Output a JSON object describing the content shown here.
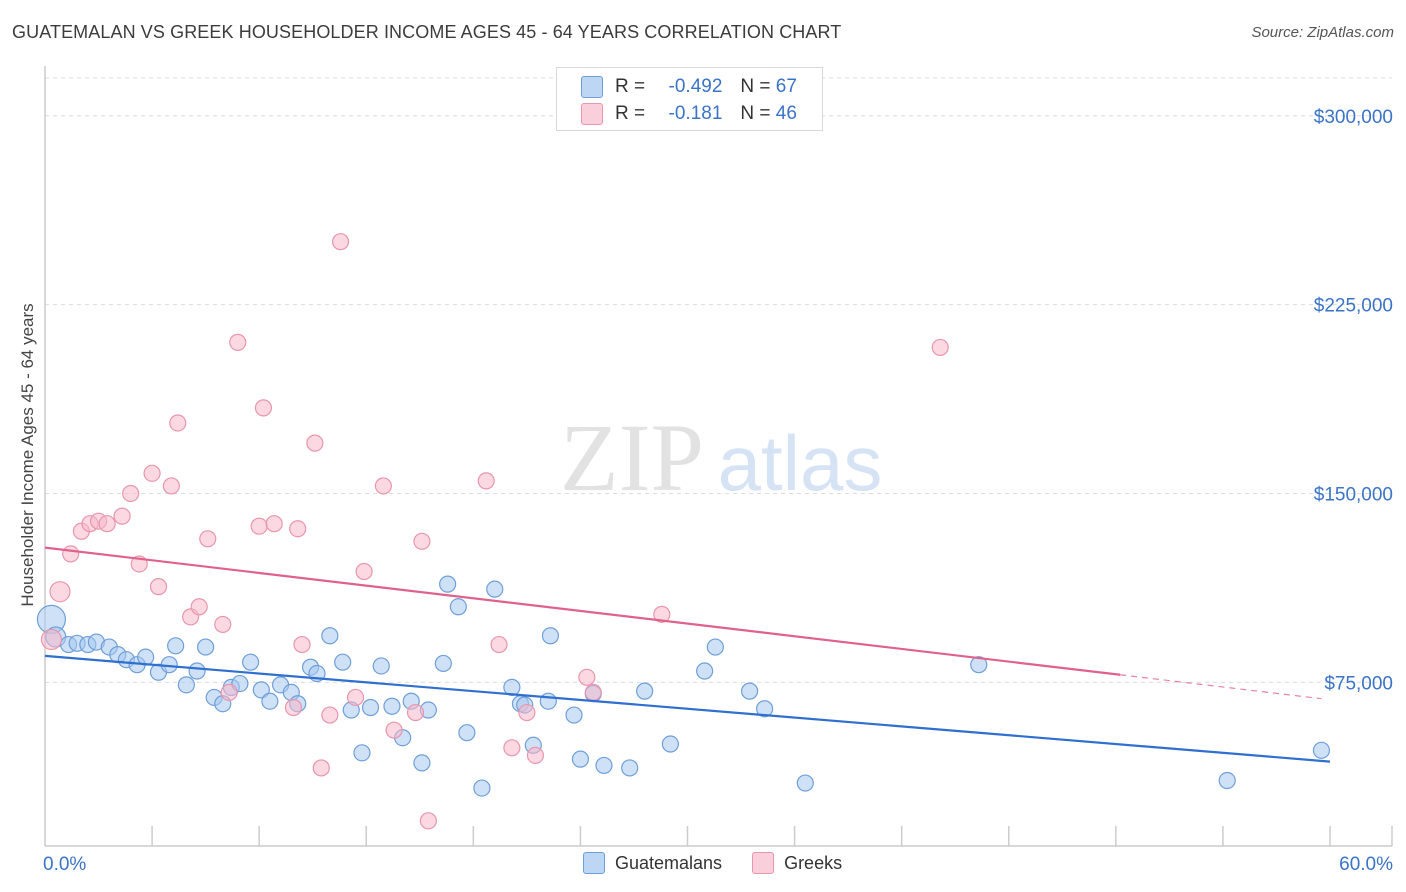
{
  "header": {
    "title": "GUATEMALAN VS GREEK HOUSEHOLDER INCOME AGES 45 - 64 YEARS CORRELATION CHART",
    "source": "Source: ZipAtlas.com"
  },
  "watermark": {
    "zip": "ZIP",
    "atlas": "atlas"
  },
  "legend": {
    "rows": [
      {
        "r_label": "R =",
        "r_value": "-0.492",
        "n_label": "N =",
        "n_value": "67",
        "color": "#a8c8f0"
      },
      {
        "r_label": "R =",
        "r_value": "-0.181",
        "n_label": "N =",
        "n_value": "46",
        "color": "#f7b8cb"
      }
    ]
  },
  "bottom_legend": {
    "items": [
      "Guatemalans",
      "Greeks"
    ]
  },
  "chart_data": {
    "type": "scatter",
    "title": "GUATEMALAN VS GREEK HOUSEHOLDER INCOME AGES 45 - 64 YEARS CORRELATION CHART",
    "xlabel": "",
    "ylabel": "Householder Income Ages 45 - 64 years",
    "xlim": [
      0,
      60
    ],
    "ylim": [
      10000,
      315000
    ],
    "x_tick_labels": [
      "0.0%",
      "60.0%"
    ],
    "y_ticks": [
      75000,
      150000,
      225000,
      300000
    ],
    "y_tick_labels": [
      "$75,000",
      "$150,000",
      "$225,000",
      "$300,000"
    ],
    "grid": true,
    "legend_position": "top-center",
    "series": [
      {
        "name": "Guatemalans",
        "color": "#a8c8f0",
        "stroke": "#6f9fd8",
        "trend": {
          "x": [
            0,
            60
          ],
          "y": [
            85500,
            43500
          ],
          "color": "#2f6fcf"
        },
        "points": [
          [
            0.3,
            100000,
            14
          ],
          [
            0.5,
            93000,
            10
          ],
          [
            1.1,
            90000,
            8
          ],
          [
            1.5,
            90500,
            8
          ],
          [
            2.0,
            90000,
            8
          ],
          [
            2.4,
            91000,
            8
          ],
          [
            3.0,
            89000,
            8
          ],
          [
            3.4,
            86000,
            8
          ],
          [
            3.8,
            84000,
            8
          ],
          [
            4.3,
            82000,
            8
          ],
          [
            4.7,
            85000,
            8
          ],
          [
            5.3,
            79000,
            8
          ],
          [
            5.8,
            82000,
            8
          ],
          [
            6.1,
            89500,
            8
          ],
          [
            6.6,
            74000,
            8
          ],
          [
            7.1,
            79500,
            8
          ],
          [
            7.5,
            89000,
            8
          ],
          [
            7.9,
            69000,
            8
          ],
          [
            8.3,
            66500,
            8
          ],
          [
            8.7,
            73000,
            8
          ],
          [
            9.1,
            74500,
            8
          ],
          [
            9.6,
            83000,
            8
          ],
          [
            10.1,
            72000,
            8
          ],
          [
            10.5,
            67500,
            8
          ],
          [
            11.0,
            74000,
            8
          ],
          [
            11.5,
            71000,
            8
          ],
          [
            11.8,
            66500,
            8
          ],
          [
            12.4,
            81000,
            8
          ],
          [
            12.7,
            78500,
            8
          ],
          [
            13.3,
            93500,
            8
          ],
          [
            13.9,
            83000,
            8
          ],
          [
            14.3,
            64000,
            8
          ],
          [
            14.8,
            47000,
            8
          ],
          [
            15.2,
            65000,
            8
          ],
          [
            15.7,
            81500,
            8
          ],
          [
            16.2,
            65500,
            8
          ],
          [
            16.7,
            53000,
            8
          ],
          [
            17.1,
            67500,
            8
          ],
          [
            17.6,
            43000,
            8
          ],
          [
            17.9,
            64000,
            8
          ],
          [
            18.6,
            82500,
            8
          ],
          [
            18.8,
            114000,
            8
          ],
          [
            19.3,
            105000,
            8
          ],
          [
            19.7,
            55000,
            8
          ],
          [
            20.4,
            33000,
            8
          ],
          [
            21.0,
            112000,
            8
          ],
          [
            21.8,
            73000,
            8
          ],
          [
            22.2,
            66500,
            8
          ],
          [
            22.4,
            66000,
            8
          ],
          [
            22.8,
            50000,
            8
          ],
          [
            23.5,
            67500,
            8
          ],
          [
            23.6,
            93500,
            8
          ],
          [
            24.7,
            62000,
            8
          ],
          [
            25.0,
            44500,
            8
          ],
          [
            25.6,
            70500,
            8
          ],
          [
            26.1,
            42000,
            8
          ],
          [
            27.3,
            41000,
            8
          ],
          [
            28.0,
            71500,
            8
          ],
          [
            29.2,
            50500,
            8
          ],
          [
            30.8,
            79500,
            8
          ],
          [
            31.3,
            89000,
            8
          ],
          [
            32.9,
            71500,
            8
          ],
          [
            33.6,
            64500,
            8
          ],
          [
            35.5,
            35000,
            8
          ],
          [
            43.6,
            82000,
            8
          ],
          [
            55.2,
            36000,
            8
          ],
          [
            59.6,
            48000,
            8
          ]
        ]
      },
      {
        "name": "Greeks",
        "color": "#f7b8cb",
        "stroke": "#e896ae",
        "trend": {
          "x": [
            0,
            50.2
          ],
          "y": [
            128500,
            78000
          ],
          "color": "#e0628c",
          "dash_to_x": 59.6,
          "dash_to_y": 68500
        },
        "points": [
          [
            0.3,
            92000,
            10
          ],
          [
            0.7,
            111000,
            10
          ],
          [
            1.2,
            126000,
            8
          ],
          [
            1.7,
            135000,
            8
          ],
          [
            2.1,
            138000,
            8
          ],
          [
            2.5,
            139000,
            8
          ],
          [
            2.9,
            138000,
            8
          ],
          [
            3.6,
            141000,
            8
          ],
          [
            4.0,
            150000,
            8
          ],
          [
            4.4,
            122000,
            8
          ],
          [
            5.0,
            158000,
            8
          ],
          [
            5.3,
            113000,
            8
          ],
          [
            5.9,
            153000,
            8
          ],
          [
            6.2,
            178000,
            8
          ],
          [
            6.8,
            101000,
            8
          ],
          [
            7.2,
            105000,
            8
          ],
          [
            7.6,
            132000,
            8
          ],
          [
            8.3,
            98000,
            8
          ],
          [
            8.6,
            71000,
            8
          ],
          [
            9.0,
            210000,
            8
          ],
          [
            10.0,
            137000,
            8
          ],
          [
            10.2,
            184000,
            8
          ],
          [
            10.7,
            138000,
            8
          ],
          [
            11.6,
            65000,
            8
          ],
          [
            11.8,
            136000,
            8
          ],
          [
            12.0,
            90000,
            8
          ],
          [
            12.6,
            170000,
            8
          ],
          [
            12.9,
            41000,
            8
          ],
          [
            13.3,
            62000,
            8
          ],
          [
            13.8,
            250000,
            8
          ],
          [
            14.5,
            69000,
            8
          ],
          [
            14.9,
            119000,
            8
          ],
          [
            15.8,
            153000,
            8
          ],
          [
            16.3,
            56000,
            8
          ],
          [
            17.3,
            63000,
            8
          ],
          [
            17.6,
            131000,
            8
          ],
          [
            17.9,
            20000,
            8
          ],
          [
            20.6,
            155000,
            8
          ],
          [
            21.2,
            90000,
            8
          ],
          [
            21.8,
            49000,
            8
          ],
          [
            22.5,
            63000,
            8
          ],
          [
            22.9,
            46000,
            8
          ],
          [
            25.3,
            77000,
            8
          ],
          [
            25.6,
            71000,
            8
          ],
          [
            28.8,
            102000,
            8
          ],
          [
            41.8,
            208000,
            8
          ]
        ]
      }
    ]
  }
}
